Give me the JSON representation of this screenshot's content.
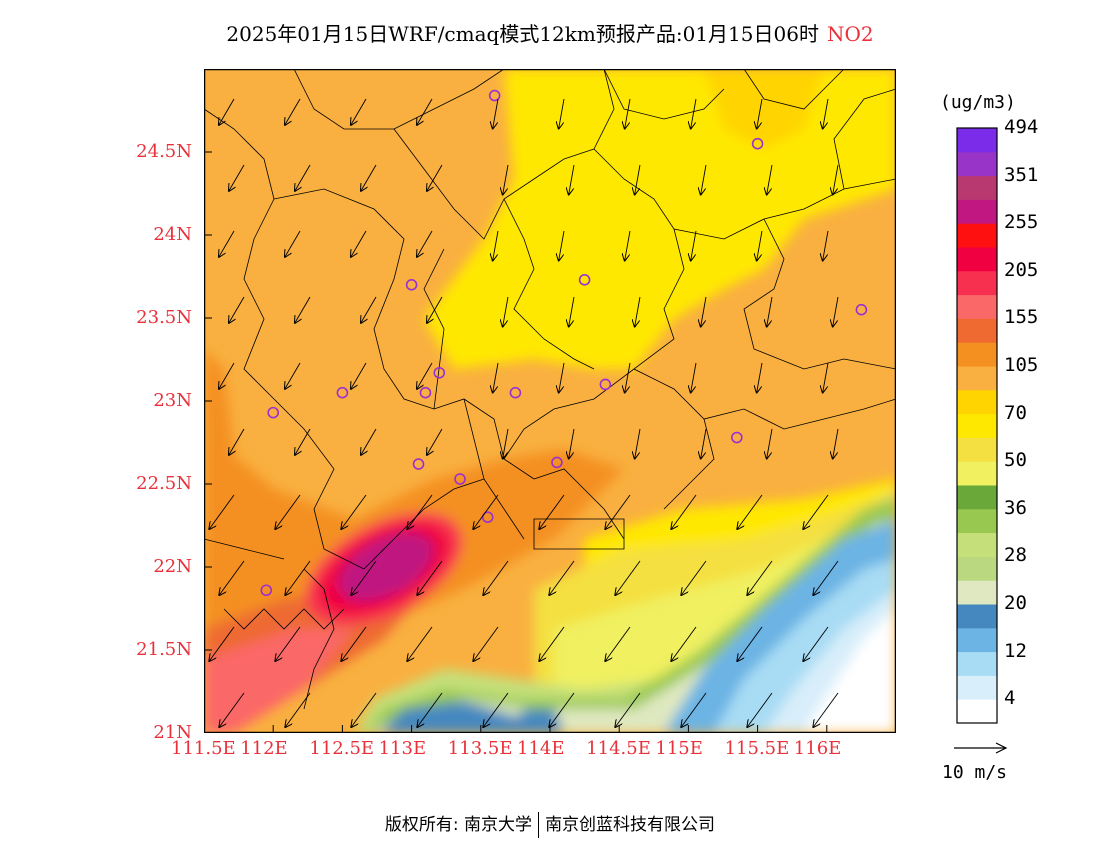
{
  "title": {
    "main": "2025年01月15日WRF/cmaq模式12km预报产品:01月15日06时",
    "species": "NO2"
  },
  "map": {
    "lon_range": [
      111.5,
      116.5
    ],
    "lat_range": [
      21.0,
      25.0
    ],
    "x_ticks": [
      "111.5E",
      "112E",
      "112.5E",
      "113E",
      "113.5E",
      "114E",
      "114.5E",
      "115E",
      "115.5E",
      "116E"
    ],
    "y_ticks": [
      "21N",
      "21.5N",
      "22N",
      "22.5N",
      "23N",
      "23.5N",
      "24N",
      "24.5N"
    ],
    "station_marker_color": "#9b30d0",
    "stations": [
      {
        "lon": 113.6,
        "lat": 24.84
      },
      {
        "lon": 115.5,
        "lat": 24.55
      },
      {
        "lon": 113.0,
        "lat": 23.7
      },
      {
        "lon": 114.25,
        "lat": 23.73
      },
      {
        "lon": 116.25,
        "lat": 23.55
      },
      {
        "lon": 113.2,
        "lat": 23.17
      },
      {
        "lon": 112.5,
        "lat": 23.05
      },
      {
        "lon": 113.1,
        "lat": 23.05
      },
      {
        "lon": 113.75,
        "lat": 23.05
      },
      {
        "lon": 114.4,
        "lat": 23.1
      },
      {
        "lon": 112.0,
        "lat": 22.93
      },
      {
        "lon": 115.35,
        "lat": 22.78
      },
      {
        "lon": 113.05,
        "lat": 22.62
      },
      {
        "lon": 113.35,
        "lat": 22.53
      },
      {
        "lon": 114.05,
        "lat": 22.63
      },
      {
        "lon": 113.55,
        "lat": 22.3
      },
      {
        "lon": 111.95,
        "lat": 21.86
      }
    ]
  },
  "colorbar": {
    "unit": "(ug/m3)",
    "colors": [
      "#ffffff",
      "#d8eefa",
      "#a8dcf4",
      "#6cb4e4",
      "#4588c0",
      "#dfe8c0",
      "#b9d880",
      "#c5e07a",
      "#98c850",
      "#6aa83a",
      "#f0f060",
      "#f4e040",
      "#ffe800",
      "#ffd400",
      "#f9b040",
      "#f49020",
      "#ee6a30",
      "#fb6868",
      "#f83050",
      "#f00040",
      "#ff1010",
      "#c01880",
      "#b83870",
      "#9834c8",
      "#7b2ce8"
    ],
    "labels": [
      "4",
      "12",
      "20",
      "28",
      "36",
      "50",
      "70",
      "105",
      "155",
      "205",
      "255",
      "351",
      "494"
    ]
  },
  "vector_reference": "10 m/s",
  "footer": {
    "left": "版权所有: 南京大学",
    "right": "南京创蓝科技有限公司"
  }
}
